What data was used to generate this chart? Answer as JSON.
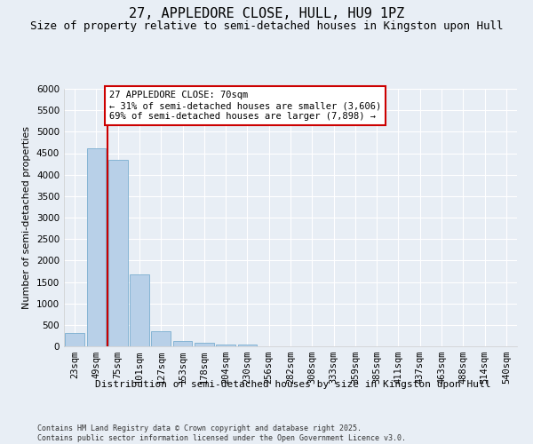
{
  "title": "27, APPLEDORE CLOSE, HULL, HU9 1PZ",
  "subtitle": "Size of property relative to semi-detached houses in Kingston upon Hull",
  "xlabel": "Distribution of semi-detached houses by size in Kingston upon Hull",
  "ylabel": "Number of semi-detached properties",
  "categories": [
    "23sqm",
    "49sqm",
    "75sqm",
    "101sqm",
    "127sqm",
    "153sqm",
    "178sqm",
    "204sqm",
    "230sqm",
    "256sqm",
    "282sqm",
    "308sqm",
    "333sqm",
    "359sqm",
    "385sqm",
    "411sqm",
    "437sqm",
    "463sqm",
    "488sqm",
    "514sqm",
    "540sqm"
  ],
  "values": [
    305,
    4620,
    4350,
    1670,
    350,
    130,
    75,
    50,
    50,
    0,
    0,
    0,
    0,
    0,
    0,
    0,
    0,
    0,
    0,
    0,
    0
  ],
  "bar_color": "#b8d0e8",
  "bar_edge_color": "#7aadd0",
  "vline_color": "#cc0000",
  "vline_x": 1.5,
  "annotation_text": "27 APPLEDORE CLOSE: 70sqm\n← 31% of semi-detached houses are smaller (3,606)\n69% of semi-detached houses are larger (7,898) →",
  "annotation_box_color": "#ffffff",
  "annotation_box_edge": "#cc0000",
  "ylim_max": 6000,
  "yticks": [
    0,
    500,
    1000,
    1500,
    2000,
    2500,
    3000,
    3500,
    4000,
    4500,
    5000,
    5500,
    6000
  ],
  "footnote": "Contains HM Land Registry data © Crown copyright and database right 2025.\nContains public sector information licensed under the Open Government Licence v3.0.",
  "bg_color": "#e8eef5",
  "grid_color": "#ffffff",
  "title_fontsize": 11,
  "subtitle_fontsize": 9,
  "axis_label_fontsize": 8,
  "tick_fontsize": 7.5
}
